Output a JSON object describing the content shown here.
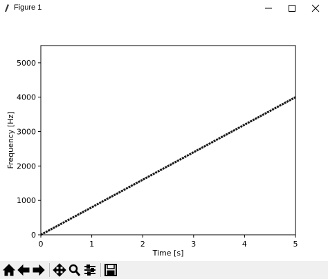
{
  "window": {
    "title": "Figure 1"
  },
  "chart_data": {
    "type": "line",
    "xlabel": "Time [s]",
    "ylabel": "Frequency [Hz]",
    "x": [
      0,
      5
    ],
    "values": [
      0,
      4000
    ],
    "color": "#1a1a1a",
    "xlim": [
      0,
      5
    ],
    "ylim": [
      0,
      5500
    ],
    "xticks": [
      0,
      1,
      2,
      3,
      4,
      5
    ],
    "yticks": [
      0,
      1000,
      2000,
      3000,
      4000,
      5000
    ],
    "grid": false
  }
}
